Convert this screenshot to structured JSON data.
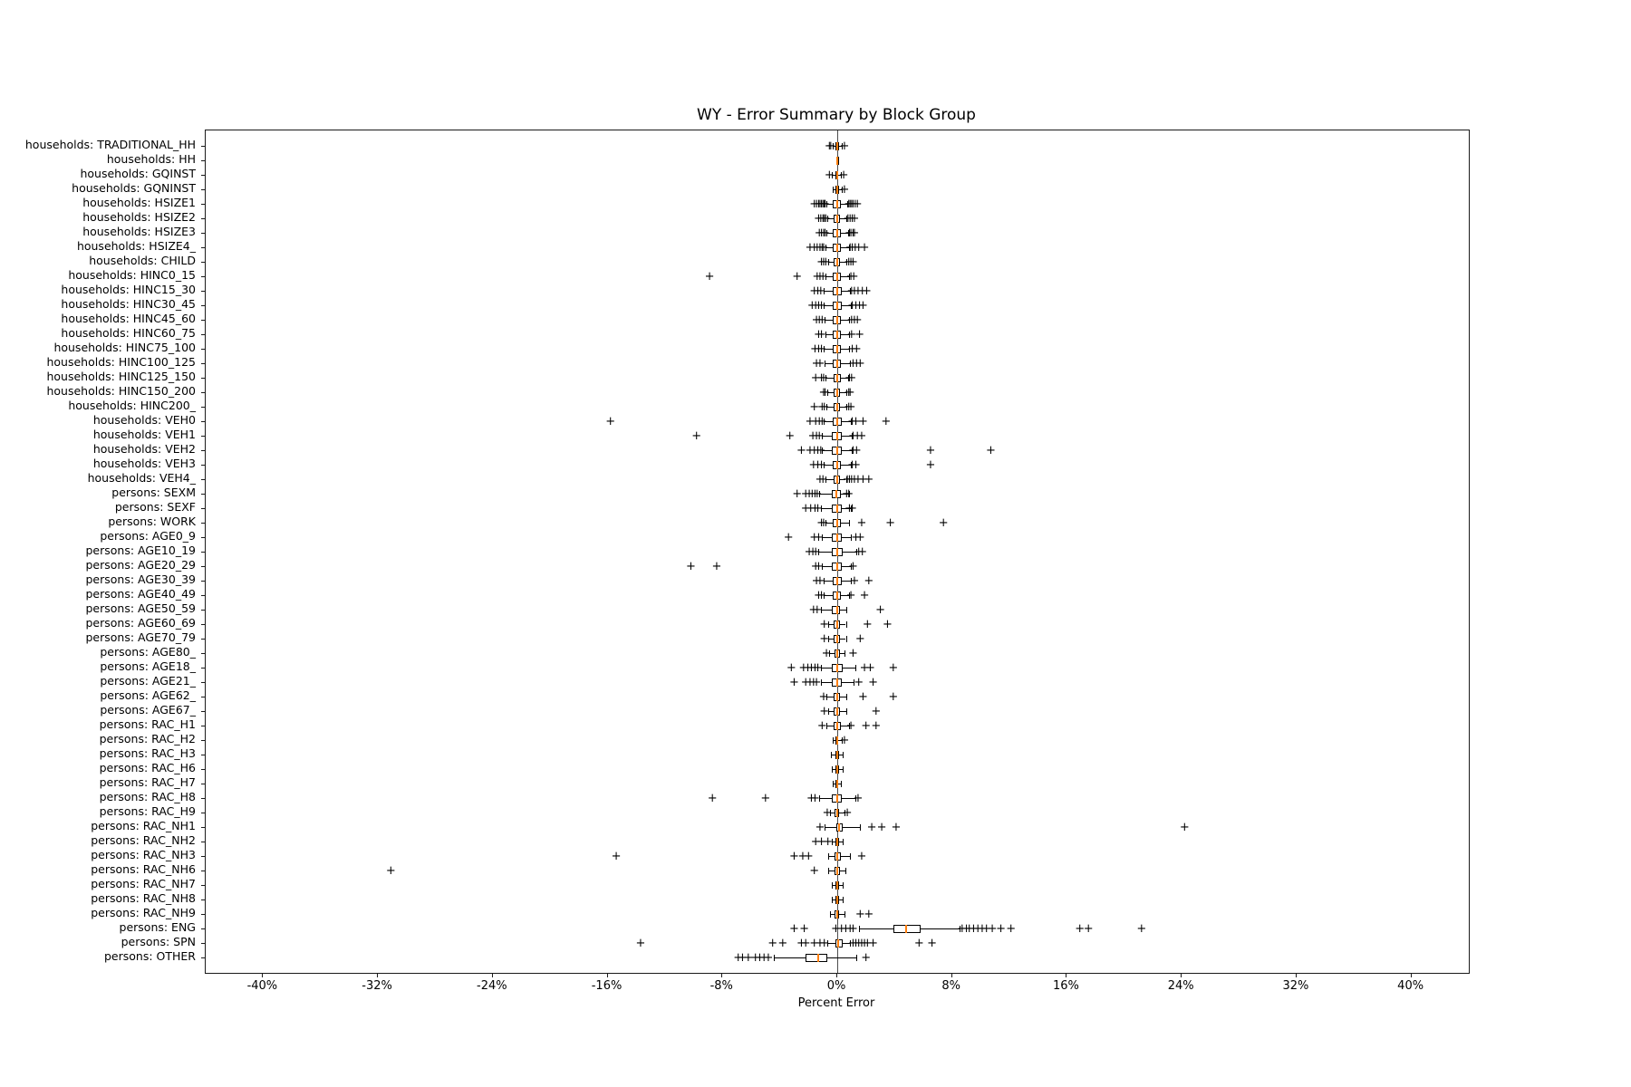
{
  "chart_data": {
    "type": "boxplot",
    "orientation": "horizontal",
    "title": "WY - Error Summary by Block Group",
    "xlabel": "Percent Error",
    "ylabel": "",
    "xlim": [
      -44,
      44
    ],
    "grid": false,
    "zero_reference_line": 0,
    "colors": {
      "median": "#ff7f0e",
      "box_edge": "#000000",
      "whisker": "#000000",
      "flier": "#000000",
      "zero_line": "#4d4d4d",
      "background": "#ffffff"
    },
    "x_tick_values": [
      -40,
      -32,
      -24,
      -16,
      -8,
      0,
      8,
      16,
      24,
      32,
      40
    ],
    "x_ticks": [
      "-40%",
      "-32%",
      "-24%",
      "-16%",
      "-8%",
      "0%",
      "8%",
      "16%",
      "24%",
      "32%",
      "40%"
    ],
    "categories": [
      {
        "label": "households: TRADITIONAL_HH",
        "whislo": -0.3,
        "q1": -0.1,
        "med": 0,
        "q3": 0.1,
        "whishi": 0.3,
        "fliers": [
          -0.55,
          -0.45,
          0.5
        ]
      },
      {
        "label": "households: HH",
        "whislo": -0.04,
        "q1": -0.02,
        "med": 0,
        "q3": 0.02,
        "whishi": 0.04,
        "fliers": []
      },
      {
        "label": "households: GQINST",
        "whislo": -0.35,
        "q1": -0.12,
        "med": 0,
        "q3": 0.08,
        "whishi": 0.25,
        "fliers": [
          -0.55,
          0.45
        ]
      },
      {
        "label": "households: GQNINST",
        "whislo": -0.3,
        "q1": -0.1,
        "med": 0,
        "q3": 0.1,
        "whishi": 0.3,
        "fliers": [
          0.5
        ]
      },
      {
        "label": "households: HSIZE1",
        "whislo": -0.75,
        "q1": -0.3,
        "med": 0,
        "q3": 0.25,
        "whishi": 0.7,
        "fliers": [
          -1.6,
          -1.45,
          -1.3,
          -1.2,
          -1.1,
          -1.0,
          -0.9,
          -0.85,
          0.8,
          0.9,
          1.0,
          1.1,
          1.25,
          1.4
        ]
      },
      {
        "label": "households: HSIZE2",
        "whislo": -0.7,
        "q1": -0.25,
        "med": 0,
        "q3": 0.2,
        "whishi": 0.65,
        "fliers": [
          -1.3,
          -1.15,
          -1.0,
          -0.9,
          -0.8,
          0.75,
          0.9,
          1.05,
          1.2
        ]
      },
      {
        "label": "households: HSIZE3",
        "whislo": -0.75,
        "q1": -0.3,
        "med": 0,
        "q3": 0.25,
        "whishi": 0.75,
        "fliers": [
          -1.25,
          -1.1,
          -0.95,
          -0.85,
          0.85,
          0.95,
          1.1,
          1.2
        ]
      },
      {
        "label": "households: HSIZE4_",
        "whislo": -0.85,
        "q1": -0.3,
        "med": 0,
        "q3": 0.28,
        "whishi": 0.8,
        "fliers": [
          -1.9,
          -1.6,
          -1.4,
          -1.2,
          -1.05,
          -0.95,
          0.9,
          1.05,
          1.25,
          1.5,
          1.9
        ]
      },
      {
        "label": "households: CHILD",
        "whislo": -0.65,
        "q1": -0.25,
        "med": 0,
        "q3": 0.22,
        "whishi": 0.65,
        "fliers": [
          -1.1,
          -0.95,
          -0.8,
          0.8,
          0.95,
          1.1
        ]
      },
      {
        "label": "households: HINC0_15",
        "whislo": -0.85,
        "q1": -0.3,
        "med": 0,
        "q3": 0.28,
        "whishi": 0.85,
        "fliers": [
          -8.9,
          -2.8,
          -1.4,
          -1.2,
          -1.0,
          0.95,
          1.15
        ]
      },
      {
        "label": "households: HINC15_30",
        "whislo": -0.95,
        "q1": -0.32,
        "med": 0,
        "q3": 0.3,
        "whishi": 0.9,
        "fliers": [
          -1.6,
          -1.35,
          -1.15,
          1.0,
          1.2,
          1.45,
          1.75,
          2.05
        ]
      },
      {
        "label": "households: HINC30_45",
        "whislo": -0.95,
        "q1": -0.33,
        "med": 0,
        "q3": 0.3,
        "whishi": 0.95,
        "fliers": [
          -1.75,
          -1.5,
          -1.3,
          -1.1,
          1.05,
          1.3,
          1.55,
          1.8
        ]
      },
      {
        "label": "households: HINC45_60",
        "whislo": -0.9,
        "q1": -0.3,
        "med": 0,
        "q3": 0.28,
        "whishi": 0.85,
        "fliers": [
          -1.45,
          -1.25,
          -1.05,
          1.0,
          1.2,
          1.4
        ]
      },
      {
        "label": "households: HINC60_75",
        "whislo": -0.85,
        "q1": -0.3,
        "med": 0,
        "q3": 0.26,
        "whishi": 0.85,
        "fliers": [
          -1.3,
          -1.1,
          1.0,
          1.55
        ]
      },
      {
        "label": "households: HINC75_100",
        "whislo": -0.95,
        "q1": -0.32,
        "med": 0,
        "q3": 0.27,
        "whishi": 0.85,
        "fliers": [
          -1.55,
          -1.3,
          -1.1,
          1.05,
          1.35
        ]
      },
      {
        "label": "households: HINC100_125",
        "whislo": -0.9,
        "q1": -0.3,
        "med": 0,
        "q3": 0.28,
        "whishi": 0.9,
        "fliers": [
          -1.45,
          -1.2,
          1.1,
          1.35,
          1.6
        ]
      },
      {
        "label": "households: HINC125_150",
        "whislo": -0.8,
        "q1": -0.28,
        "med": 0,
        "q3": 0.24,
        "whishi": 0.75,
        "fliers": [
          -1.5,
          -1.1,
          -0.95,
          0.85,
          1.0
        ]
      },
      {
        "label": "households: HINC150_200",
        "whislo": -0.7,
        "q1": -0.24,
        "med": 0,
        "q3": 0.2,
        "whishi": 0.65,
        "fliers": [
          -0.95,
          -0.85,
          0.8,
          0.9
        ]
      },
      {
        "label": "households: HINC200_",
        "whislo": -0.75,
        "q1": -0.25,
        "med": 0,
        "q3": 0.2,
        "whishi": 0.65,
        "fliers": [
          -1.6,
          -1.05,
          -0.9,
          0.8,
          0.95
        ]
      },
      {
        "label": "households: VEH0",
        "whislo": -0.95,
        "q1": -0.32,
        "med": 0,
        "q3": 0.3,
        "whishi": 0.95,
        "fliers": [
          -15.8,
          -1.9,
          -1.5,
          -1.25,
          -1.05,
          1.05,
          1.3,
          1.8,
          3.4
        ]
      },
      {
        "label": "households: VEH1",
        "whislo": -1.05,
        "q1": -0.35,
        "med": 0,
        "q3": 0.3,
        "whishi": 1.0,
        "fliers": [
          -9.8,
          -3.3,
          -1.7,
          -1.45,
          -1.25,
          1.1,
          1.4,
          1.7
        ]
      },
      {
        "label": "households: VEH2",
        "whislo": -1.1,
        "q1": -0.38,
        "med": 0,
        "q3": 0.3,
        "whishi": 1.0,
        "fliers": [
          -2.5,
          -1.9,
          -1.6,
          -1.35,
          -1.15,
          1.1,
          1.35,
          6.5,
          10.7
        ]
      },
      {
        "label": "households: VEH3",
        "whislo": -0.95,
        "q1": -0.32,
        "med": 0,
        "q3": 0.28,
        "whishi": 0.95,
        "fliers": [
          -1.65,
          -1.35,
          -1.1,
          1.05,
          1.3,
          6.5
        ]
      },
      {
        "label": "households: VEH4_",
        "whislo": -0.85,
        "q1": -0.28,
        "med": 0,
        "q3": 0.2,
        "whishi": 0.6,
        "fliers": [
          -1.2,
          -1.0,
          0.7,
          0.85,
          1.0,
          1.2,
          1.45,
          1.8,
          2.2
        ]
      },
      {
        "label": "persons: SEXM",
        "whislo": -1.25,
        "q1": -0.4,
        "med": -0.05,
        "q3": 0.25,
        "whishi": 0.85,
        "fliers": [
          -2.8,
          -2.2,
          -1.95,
          -1.75,
          -1.55,
          -1.4,
          0.65,
          0.8
        ]
      },
      {
        "label": "persons: SEXF",
        "whislo": -1.15,
        "q1": -0.35,
        "med": 0,
        "q3": 0.3,
        "whishi": 0.95,
        "fliers": [
          -2.2,
          -1.85,
          -1.55,
          -1.35,
          0.85,
          1.05
        ]
      },
      {
        "label": "persons: WORK",
        "whislo": -0.85,
        "q1": -0.3,
        "med": 0,
        "q3": 0.28,
        "whishi": 0.85,
        "fliers": [
          -1.1,
          -0.95,
          1.7,
          3.7,
          7.4
        ]
      },
      {
        "label": "persons: AGE0_9",
        "whislo": -1.05,
        "q1": -0.35,
        "med": 0,
        "q3": 0.3,
        "whishi": 0.95,
        "fliers": [
          -3.4,
          -1.6,
          -1.3,
          1.3,
          1.6
        ]
      },
      {
        "label": "persons: AGE10_19",
        "whislo": -1.3,
        "q1": -0.4,
        "med": 0,
        "q3": 0.35,
        "whishi": 1.3,
        "fliers": [
          -1.95,
          -1.7,
          -1.5,
          1.5,
          1.75
        ]
      },
      {
        "label": "persons: AGE20_29",
        "whislo": -1.05,
        "q1": -0.35,
        "med": 0,
        "q3": 0.3,
        "whishi": 0.95,
        "fliers": [
          -10.2,
          -8.4,
          -1.5,
          -1.3,
          1.1
        ]
      },
      {
        "label": "persons: AGE30_39",
        "whislo": -0.95,
        "q1": -0.32,
        "med": 0,
        "q3": 0.3,
        "whishi": 0.95,
        "fliers": [
          -1.45,
          -1.2,
          1.2,
          2.2
        ]
      },
      {
        "label": "persons: AGE40_49",
        "whislo": -0.95,
        "q1": -0.3,
        "med": 0,
        "q3": 0.26,
        "whishi": 0.85,
        "fliers": [
          -1.3,
          -1.1,
          0.95,
          1.9
        ]
      },
      {
        "label": "persons: AGE50_59",
        "whislo": -1.15,
        "q1": -0.36,
        "med": 0,
        "q3": 0.22,
        "whishi": 0.65,
        "fliers": [
          -1.65,
          -1.4,
          3.0
        ]
      },
      {
        "label": "persons: AGE60_69",
        "whislo": -0.65,
        "q1": -0.24,
        "med": 0,
        "q3": 0.2,
        "whishi": 0.6,
        "fliers": [
          -0.9,
          2.1,
          3.5
        ]
      },
      {
        "label": "persons: AGE70_79",
        "whislo": -0.65,
        "q1": -0.24,
        "med": 0,
        "q3": 0.2,
        "whishi": 0.6,
        "fliers": [
          -0.9,
          1.6
        ]
      },
      {
        "label": "persons: AGE80_",
        "whislo": -0.55,
        "q1": -0.2,
        "med": 0,
        "q3": 0.16,
        "whishi": 0.5,
        "fliers": [
          -0.75,
          1.1
        ]
      },
      {
        "label": "persons: AGE18_",
        "whislo": -1.15,
        "q1": -0.38,
        "med": 0,
        "q3": 0.35,
        "whishi": 1.25,
        "fliers": [
          -3.2,
          -2.35,
          -2.05,
          -1.8,
          -1.55,
          -1.35,
          1.9,
          2.3,
          3.9
        ]
      },
      {
        "label": "persons: AGE21_",
        "whislo": -1.15,
        "q1": -0.38,
        "med": 0,
        "q3": 0.33,
        "whishi": 1.15,
        "fliers": [
          -3.0,
          -2.2,
          -1.9,
          -1.65,
          -1.45,
          1.5,
          2.5
        ]
      },
      {
        "label": "persons: AGE62_",
        "whislo": -0.75,
        "q1": -0.26,
        "med": 0,
        "q3": 0.2,
        "whishi": 0.65,
        "fliers": [
          -0.95,
          1.8,
          3.9
        ]
      },
      {
        "label": "persons: AGE67_",
        "whislo": -0.65,
        "q1": -0.24,
        "med": 0,
        "q3": 0.2,
        "whishi": 0.65,
        "fliers": [
          -0.9,
          2.7
        ]
      },
      {
        "label": "persons: RAC_H1",
        "whislo": -0.75,
        "q1": -0.28,
        "med": 0,
        "q3": 0.26,
        "whishi": 0.85,
        "fliers": [
          -1.05,
          0.95,
          2.0,
          2.7
        ]
      },
      {
        "label": "persons: RAC_H2",
        "whislo": -0.3,
        "q1": -0.1,
        "med": 0,
        "q3": 0.08,
        "whishi": 0.3,
        "fliers": [
          0.5
        ]
      },
      {
        "label": "persons: RAC_H3",
        "whislo": -0.45,
        "q1": -0.15,
        "med": 0,
        "q3": 0.12,
        "whishi": 0.4,
        "fliers": []
      },
      {
        "label": "persons: RAC_H6",
        "whislo": -0.4,
        "q1": -0.13,
        "med": 0,
        "q3": 0.1,
        "whishi": 0.38,
        "fliers": []
      },
      {
        "label": "persons: RAC_H7",
        "whislo": -0.3,
        "q1": -0.1,
        "med": 0,
        "q3": 0.08,
        "whishi": 0.28,
        "fliers": []
      },
      {
        "label": "persons: RAC_H8",
        "whislo": -1.25,
        "q1": -0.4,
        "med": 0,
        "q3": 0.3,
        "whishi": 1.25,
        "fliers": [
          -8.7,
          -5.0,
          -1.8,
          -1.55,
          1.45
        ]
      },
      {
        "label": "persons: RAC_H9",
        "whislo": -0.5,
        "q1": -0.16,
        "med": 0,
        "q3": 0.13,
        "whishi": 0.5,
        "fliers": [
          -0.7,
          0.7
        ]
      },
      {
        "label": "persons: RAC_NH1",
        "whislo": -0.9,
        "q1": -0.08,
        "med": 0.1,
        "q3": 0.38,
        "whishi": 1.6,
        "fliers": [
          -1.2,
          2.4,
          3.1,
          4.1,
          24.2
        ]
      },
      {
        "label": "persons: RAC_NH2",
        "whislo": -0.4,
        "q1": -0.13,
        "med": 0,
        "q3": 0.1,
        "whishi": 0.4,
        "fliers": [
          -1.5,
          -1.1,
          -0.65
        ]
      },
      {
        "label": "persons: RAC_NH3",
        "whislo": -0.6,
        "q1": -0.2,
        "med": 0,
        "q3": 0.26,
        "whishi": 0.9,
        "fliers": [
          -15.4,
          -3.0,
          -2.4,
          -2.0,
          1.7
        ]
      },
      {
        "label": "persons: RAC_NH6",
        "whislo": -0.6,
        "q1": -0.2,
        "med": 0,
        "q3": 0.16,
        "whishi": 0.55,
        "fliers": [
          -31.1,
          -1.6
        ]
      },
      {
        "label": "persons: RAC_NH7",
        "whislo": -0.4,
        "q1": -0.13,
        "med": 0,
        "q3": 0.1,
        "whishi": 0.4,
        "fliers": []
      },
      {
        "label": "persons: RAC_NH8",
        "whislo": -0.4,
        "q1": -0.13,
        "med": 0,
        "q3": 0.1,
        "whishi": 0.4,
        "fliers": []
      },
      {
        "label": "persons: RAC_NH9",
        "whislo": -0.5,
        "q1": -0.16,
        "med": 0,
        "q3": 0.13,
        "whishi": 0.5,
        "fliers": [
          1.6,
          2.2
        ]
      },
      {
        "label": "persons: ENG",
        "whislo": 1.5,
        "q1": 3.9,
        "med": 4.8,
        "q3": 5.8,
        "whishi": 8.5,
        "fliers": [
          -3.0,
          -2.3,
          -0.1,
          0.3,
          0.6,
          0.9,
          1.1,
          8.7,
          9.0,
          9.2,
          9.5,
          9.8,
          10.1,
          10.4,
          10.8,
          11.4,
          12.1,
          16.9,
          17.5,
          21.2
        ]
      },
      {
        "label": "persons: SPN",
        "whislo": -0.7,
        "q1": -0.1,
        "med": 0.05,
        "q3": 0.4,
        "whishi": 0.9,
        "fliers": [
          -13.7,
          -4.5,
          -3.8,
          -2.5,
          -2.2,
          -1.6,
          -1.2,
          -0.9,
          1.1,
          1.3,
          1.5,
          1.7,
          1.9,
          2.1,
          2.5,
          5.7,
          6.6
        ]
      },
      {
        "label": "persons: OTHER",
        "whislo": -4.4,
        "q1": -2.2,
        "med": -1.3,
        "q3": -0.7,
        "whishi": 1.3,
        "fliers": [
          -6.9,
          -6.6,
          -6.2,
          -5.7,
          -5.4,
          -5.1,
          -4.8,
          2.0
        ]
      }
    ]
  }
}
